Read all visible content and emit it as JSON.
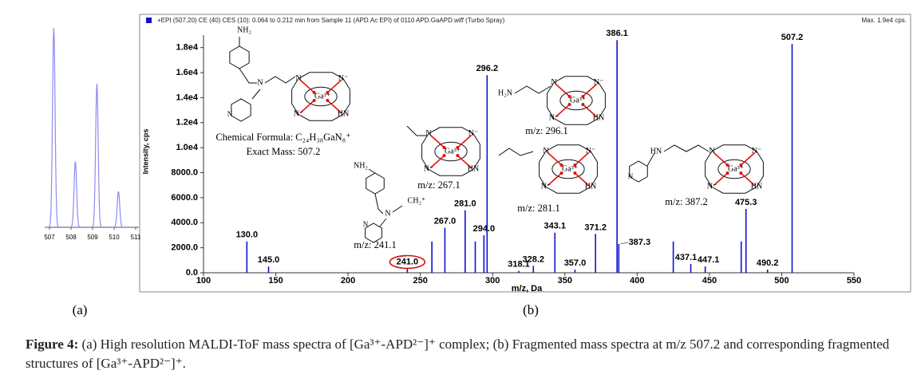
{
  "chart_data": [
    {
      "type": "peaks",
      "x": [
        507.2,
        508.2,
        509.2,
        510.2
      ],
      "values": [
        100,
        33,
        72,
        18
      ],
      "color": "#8c8cf2",
      "xlim": [
        507,
        511
      ],
      "xticks": [
        507,
        508,
        509,
        510,
        511
      ],
      "ylim": [
        0,
        100
      ],
      "panel_label": "(a)"
    },
    {
      "type": "stick",
      "header": "+EPI (507.20) CE (40) CES (10): 0.064 to 0.212 min from Sample 11 (APD.Ac EPI) of 0110 APD.GaAPD.wiff (Turbo Spray)",
      "max_note": "Max. 1.9e4 cps.",
      "xlabel": "m/z, Da",
      "ylabel": "Intensity, cps",
      "color": "#1010d0",
      "x": [
        130.0,
        145.0,
        241.0,
        258,
        267.0,
        281.0,
        288,
        294.0,
        296.2,
        318.1,
        328.2,
        343.1,
        357.0,
        371.2,
        386.1,
        387.3,
        425,
        437.1,
        447.1,
        472,
        475.3,
        490.2,
        507.2
      ],
      "values": [
        2500,
        500,
        350,
        2500,
        3600,
        5000,
        2500,
        3000,
        15800,
        150,
        550,
        3200,
        250,
        3100,
        18600,
        2300,
        2500,
        700,
        500,
        2500,
        5100,
        250,
        18300
      ],
      "x_labels": [
        "130.0",
        "145.0",
        "241.0",
        null,
        "267.0",
        "281.0",
        null,
        "294.0",
        "296.2",
        "318.1",
        "328.2",
        "343.1",
        "357.0",
        "371.2",
        "386.1",
        "387.3",
        null,
        "437.1",
        "447.1",
        null,
        "475.3",
        "490.2",
        "507.2"
      ],
      "xlim": [
        100,
        550
      ],
      "xticks": [
        100,
        150,
        200,
        250,
        300,
        350,
        400,
        450,
        500,
        550
      ],
      "ylim": [
        0,
        19000
      ],
      "yticks": [
        {
          "value": 0,
          "label": "0.0"
        },
        {
          "value": 2000,
          "label": "2000.0"
        },
        {
          "value": 4000,
          "label": "4000.0"
        },
        {
          "value": 6000,
          "label": "6000.0"
        },
        {
          "value": 8000,
          "label": "8000.0"
        },
        {
          "value": 10000,
          "label": "1.0e4"
        },
        {
          "value": 12000,
          "label": "1.2e4"
        },
        {
          "value": 14000,
          "label": "1.4e4"
        },
        {
          "value": 16000,
          "label": "1.6e4"
        },
        {
          "value": 18000,
          "label": "1.8e4"
        }
      ],
      "panel_label": "(b)"
    }
  ],
  "structures": [
    {
      "ring": [
        "N",
        "N⁻",
        "N⁻",
        "HN"
      ],
      "metal": "Ga³⁺",
      "others": [
        "NH₂",
        "N",
        "N"
      ],
      "formula": "Chemical Formula: C₂₄H₃₈GaN₈⁺",
      "exact_mass": "Exact Mass: 507.2"
    },
    {
      "ring": [
        "N",
        "N⁻",
        "N⁻",
        "HN"
      ],
      "metal": "Ga³⁺",
      "others": [],
      "label": "m/z: 267.1"
    },
    {
      "others": [
        "NH₂",
        "N",
        "N",
        "CH₂⁺"
      ],
      "label": "m/z: 241.1"
    },
    {
      "ring": [
        "N",
        "N⁻",
        "N⁻",
        "HN"
      ],
      "metal": "Ga³⁺",
      "others": [
        "H₂N"
      ],
      "label": "m/z: 296.1"
    },
    {
      "ring": [
        "N",
        "N⁻",
        "N⁻",
        "HN"
      ],
      "metal": "Ga³⁺",
      "others": [],
      "label": "m/z: 281.1"
    },
    {
      "ring": [
        "N",
        "N⁻",
        "N⁻",
        "HN"
      ],
      "metal": "Ga³⁺",
      "others": [
        "HN",
        "N"
      ],
      "label": "m/z: 387.2"
    }
  ],
  "caption": {
    "lead": "Figure 4:",
    "text": "(a) High resolution MALDI-ToF mass spectra of [Ga³⁺-APD²⁻]⁺ complex; (b) Fragmented mass spectra at m/z 507.2 and corresponding fragmented structures of [Ga³⁺-APD²⁻]⁺."
  }
}
